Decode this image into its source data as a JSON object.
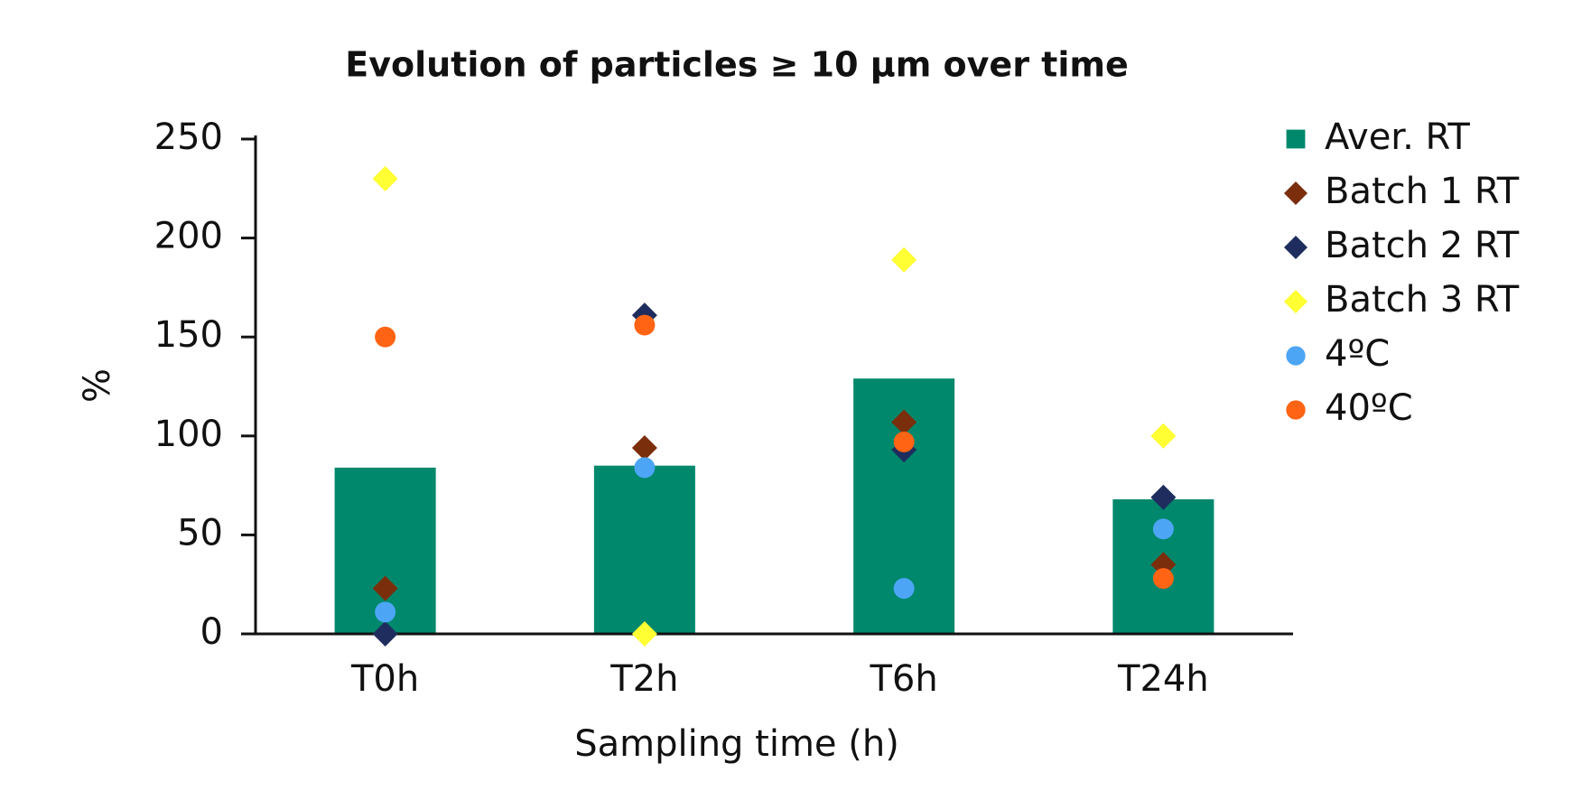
{
  "chart_data": {
    "type": "bar",
    "title": "Evolution of particles ≥ 10 µm over time",
    "x_label": "Sampling time (h)",
    "y_label": "%",
    "categories": [
      "T0h",
      "T2h",
      "T6h",
      "T24h"
    ],
    "ylim": [
      0,
      250
    ],
    "yticks": [
      0,
      50,
      100,
      150,
      200,
      250
    ],
    "legend": "right",
    "series": [
      {
        "name": "Aver. RT",
        "type": "bar",
        "marker": "square",
        "color": "#00886d",
        "values": [
          84,
          85,
          129,
          68
        ]
      },
      {
        "name": "Batch 1 RT",
        "type": "scatter",
        "marker": "diamond",
        "color": "#7b2e0c",
        "values": [
          23,
          94,
          107,
          35
        ]
      },
      {
        "name": "Batch 2 RT",
        "type": "scatter",
        "marker": "diamond",
        "color": "#1f2d5e",
        "values": [
          0,
          161,
          93,
          69
        ]
      },
      {
        "name": "Batch 3 RT",
        "type": "scatter",
        "marker": "diamond",
        "color": "#ffff33",
        "values": [
          230,
          0,
          189,
          100
        ]
      },
      {
        "name": "4ºC",
        "type": "scatter",
        "marker": "circle",
        "color": "#4da6f5",
        "values": [
          11,
          84,
          23,
          53
        ]
      },
      {
        "name": "40ºC",
        "type": "scatter",
        "marker": "circle",
        "color": "#ff6414",
        "values": [
          150,
          156,
          97,
          28
        ]
      }
    ]
  }
}
